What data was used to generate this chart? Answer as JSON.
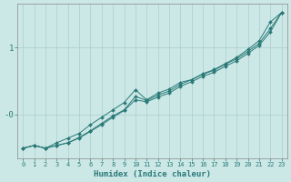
{
  "background_color": "#cce8e6",
  "grid_color": "#aacece",
  "line_color": "#2a7a78",
  "xlabel": "Humidex (Indice chaleur)",
  "xlim_min": -0.5,
  "xlim_max": 23.5,
  "ylim_min": -0.65,
  "ylim_max": 1.65,
  "yticks": [
    0.0,
    1.0
  ],
  "ytick_labels": [
    "-0",
    "1"
  ],
  "xticks": [
    0,
    1,
    2,
    3,
    4,
    5,
    6,
    7,
    8,
    9,
    10,
    11,
    12,
    13,
    14,
    15,
    16,
    17,
    18,
    19,
    20,
    21,
    22,
    23
  ],
  "x": [
    0,
    1,
    2,
    3,
    4,
    5,
    6,
    7,
    8,
    9,
    10,
    11,
    12,
    13,
    14,
    15,
    16,
    17,
    18,
    19,
    20,
    21,
    22,
    23
  ],
  "line1": [
    -0.5,
    -0.46,
    -0.5,
    -0.46,
    -0.42,
    -0.35,
    -0.25,
    -0.15,
    -0.04,
    0.06,
    0.22,
    0.19,
    0.26,
    0.32,
    0.42,
    0.49,
    0.57,
    0.63,
    0.72,
    0.8,
    0.91,
    1.03,
    1.23,
    1.52
  ],
  "line2": [
    -0.5,
    -0.46,
    -0.5,
    -0.46,
    -0.42,
    -0.34,
    -0.24,
    -0.13,
    -0.02,
    0.07,
    0.27,
    0.21,
    0.29,
    0.35,
    0.45,
    0.52,
    0.6,
    0.66,
    0.75,
    0.83,
    0.94,
    1.06,
    1.28,
    1.52
  ],
  "line3": [
    -0.5,
    -0.46,
    -0.5,
    -0.42,
    -0.35,
    -0.28,
    -0.15,
    -0.04,
    0.07,
    0.18,
    0.37,
    0.22,
    0.32,
    0.38,
    0.48,
    0.52,
    0.61,
    0.67,
    0.76,
    0.85,
    0.97,
    1.1,
    1.38,
    1.52
  ]
}
